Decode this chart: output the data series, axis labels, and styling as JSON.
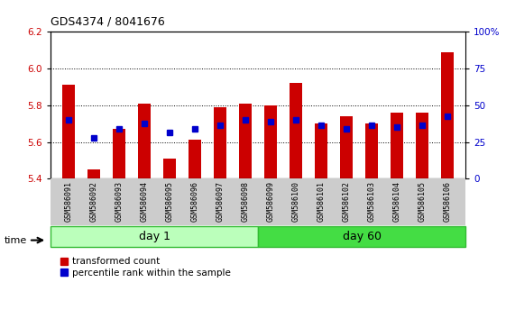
{
  "title": "GDS4374 / 8041676",
  "samples": [
    "GSM586091",
    "GSM586092",
    "GSM586093",
    "GSM586094",
    "GSM586095",
    "GSM586096",
    "GSM586097",
    "GSM586098",
    "GSM586099",
    "GSM586100",
    "GSM586101",
    "GSM586102",
    "GSM586103",
    "GSM586104",
    "GSM586105",
    "GSM586106"
  ],
  "bar_values": [
    5.91,
    5.45,
    5.67,
    5.81,
    5.51,
    5.61,
    5.79,
    5.81,
    5.8,
    5.92,
    5.7,
    5.74,
    5.7,
    5.76,
    5.76,
    6.09
  ],
  "blue_values": [
    5.72,
    5.62,
    5.67,
    5.7,
    5.65,
    5.67,
    5.69,
    5.72,
    5.71,
    5.72,
    5.69,
    5.67,
    5.69,
    5.68,
    5.69,
    5.74
  ],
  "bar_color": "#cc0000",
  "blue_color": "#0000cc",
  "ylim_left": [
    5.4,
    6.2
  ],
  "ylim_right": [
    0,
    100
  ],
  "yticks_left": [
    5.4,
    5.6,
    5.8,
    6.0,
    6.2
  ],
  "yticks_right": [
    0,
    25,
    50,
    75,
    100
  ],
  "ytick_labels_right": [
    "0",
    "25",
    "50",
    "75",
    "100%"
  ],
  "grid_lines": [
    5.6,
    5.8,
    6.0
  ],
  "day1_label": "day 1",
  "day60_label": "day 60",
  "day1_color": "#bbffbb",
  "day60_color": "#44dd44",
  "legend_red": "transformed count",
  "legend_blue": "percentile rank within the sample",
  "tick_label_bg": "#cccccc",
  "bar_width": 0.5
}
